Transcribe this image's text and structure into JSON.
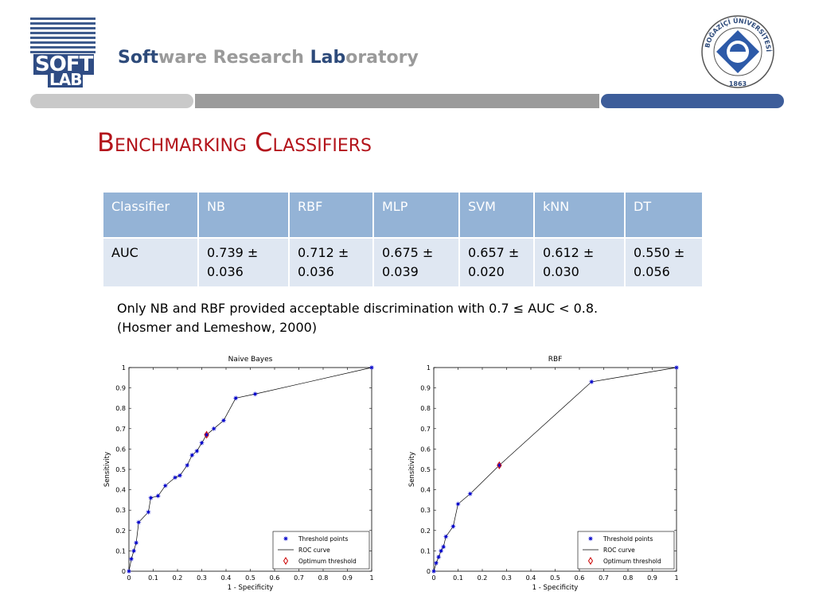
{
  "header": {
    "logo_line1": "SOFT",
    "logo_line2": "LAB",
    "lab_title_parts": [
      {
        "text": "Soft",
        "tone": "dark"
      },
      {
        "text": "ware ",
        "tone": "light"
      },
      {
        "text": "Research ",
        "tone": "light"
      },
      {
        "text": "Lab",
        "tone": "dark"
      },
      {
        "text": "oratory",
        "tone": "light"
      }
    ],
    "seal_text": "BOĞAZİÇİ ÜNİVERSİTESİ",
    "seal_year": "1863"
  },
  "slide": {
    "title": "Benchmarking Classifiers",
    "note_line1": "Only NB and RBF provided acceptable discrimination with 0.7 ≤ AUC < 0.8.",
    "note_line2": "(Hosmer and Lemeshow, 2000)"
  },
  "table": {
    "headers": [
      "Classifier",
      "NB",
      "RBF",
      "MLP",
      "SVM",
      "kNN",
      "DT"
    ],
    "row_label": "AUC",
    "values": [
      [
        "0.739 ±",
        "0.036"
      ],
      [
        "0.712 ±",
        "0.036"
      ],
      [
        "0.675 ±",
        "0.039"
      ],
      [
        "0.657 ±",
        "0.020"
      ],
      [
        "0.612 ±",
        "0.030"
      ],
      [
        "0.550 ±",
        "0.056"
      ]
    ]
  },
  "colors": {
    "title_red": "#b3141b",
    "header_blue": "#94b3d6",
    "cell_blue": "#dfe7f2",
    "point_blue": "#0000cc",
    "optimum_red": "#cc0000"
  },
  "chart_data": [
    {
      "type": "line",
      "title": "Naive Bayes",
      "xlabel": "1 - Specificity",
      "ylabel": "Sensitivity",
      "xlim": [
        0,
        1
      ],
      "ylim": [
        0,
        1
      ],
      "ticks": [
        "0",
        "0.1",
        "0.2",
        "0.3",
        "0.4",
        "0.5",
        "0.6",
        "0.7",
        "0.8",
        "0.9",
        "1"
      ],
      "grid": false,
      "legend_position": "bottom-right",
      "legend": [
        "Threshold points",
        "ROC curve",
        "Optimum threshold"
      ],
      "points": [
        [
          0,
          0
        ],
        [
          0.01,
          0.06
        ],
        [
          0.02,
          0.1
        ],
        [
          0.03,
          0.14
        ],
        [
          0.04,
          0.24
        ],
        [
          0.08,
          0.29
        ],
        [
          0.09,
          0.36
        ],
        [
          0.12,
          0.37
        ],
        [
          0.15,
          0.42
        ],
        [
          0.19,
          0.46
        ],
        [
          0.21,
          0.47
        ],
        [
          0.24,
          0.52
        ],
        [
          0.26,
          0.57
        ],
        [
          0.28,
          0.59
        ],
        [
          0.3,
          0.63
        ],
        [
          0.32,
          0.67
        ],
        [
          0.35,
          0.7
        ],
        [
          0.39,
          0.74
        ],
        [
          0.44,
          0.85
        ],
        [
          0.52,
          0.87
        ],
        [
          1,
          1
        ]
      ],
      "optimum": [
        0.32,
        0.67
      ]
    },
    {
      "type": "line",
      "title": "RBF",
      "xlabel": "1 - Specificity",
      "ylabel": "Sensitivity",
      "xlim": [
        0,
        1
      ],
      "ylim": [
        0,
        1
      ],
      "ticks": [
        "0",
        "0.1",
        "0.2",
        "0.3",
        "0.4",
        "0.5",
        "0.6",
        "0.7",
        "0.8",
        "0.9",
        "1"
      ],
      "grid": false,
      "legend_position": "bottom-right",
      "legend": [
        "Threshold points",
        "ROC curve",
        "Optimum threshold"
      ],
      "points": [
        [
          0,
          0
        ],
        [
          0.01,
          0.04
        ],
        [
          0.02,
          0.07
        ],
        [
          0.03,
          0.1
        ],
        [
          0.04,
          0.12
        ],
        [
          0.05,
          0.17
        ],
        [
          0.08,
          0.22
        ],
        [
          0.1,
          0.33
        ],
        [
          0.15,
          0.38
        ],
        [
          0.27,
          0.52
        ],
        [
          0.65,
          0.93
        ],
        [
          1,
          1
        ]
      ],
      "optimum": [
        0.27,
        0.52
      ]
    }
  ]
}
